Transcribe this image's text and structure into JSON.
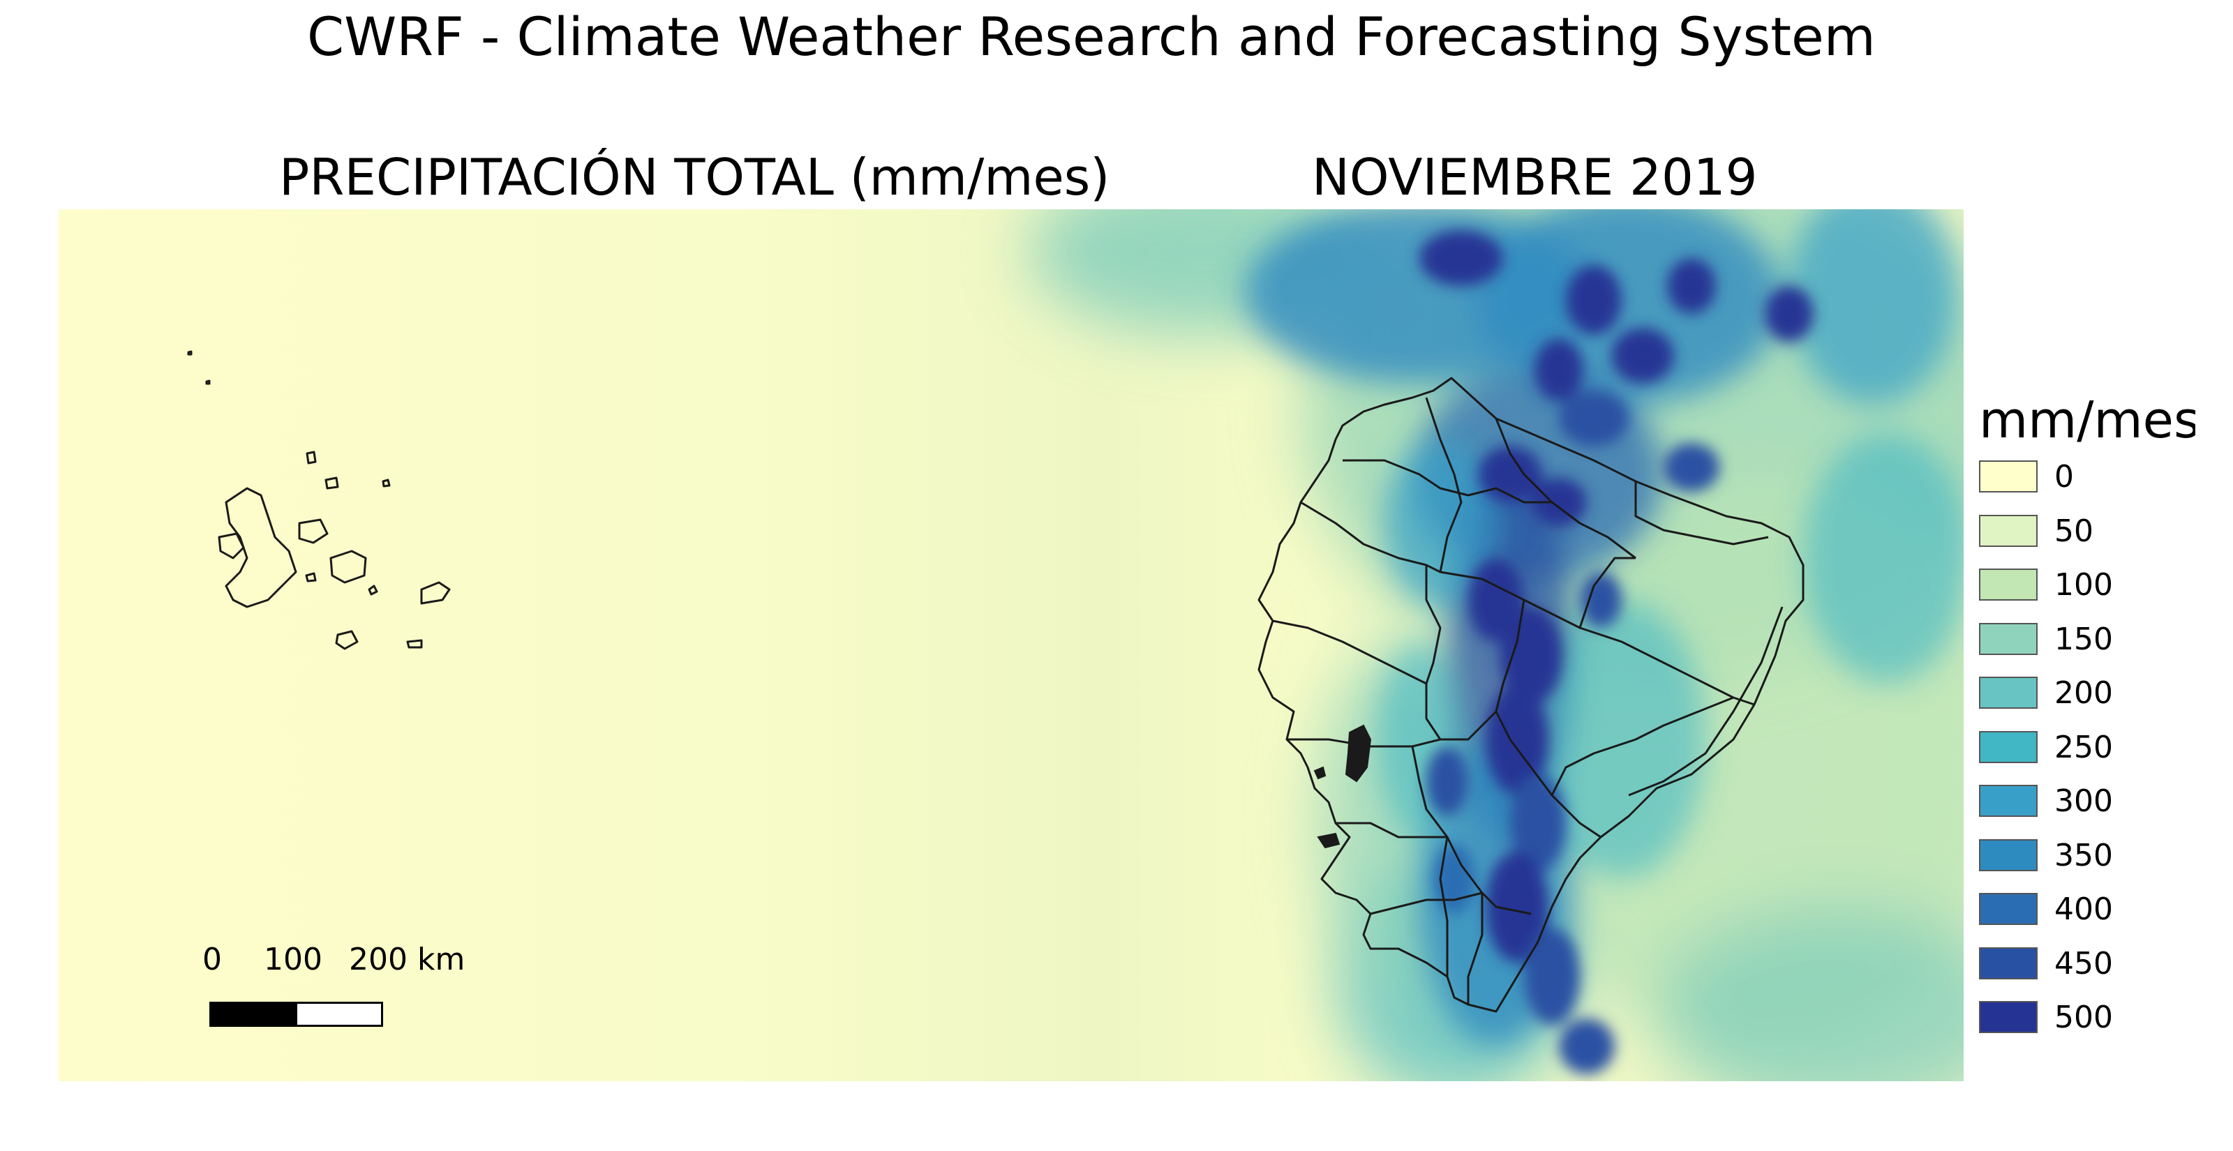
{
  "header": {
    "title": "CWRF - Climate Weather Research and Forecasting System",
    "variable": "PRECIPITACIÓN TOTAL (mm/mes)",
    "period": "NOVIEMBRE 2019"
  },
  "legend": {
    "title": "mm/mes",
    "items": [
      {
        "label": "0",
        "color": "#ffffcc"
      },
      {
        "label": "50",
        "color": "#e0f3c2"
      },
      {
        "label": "100",
        "color": "#c2e6b4"
      },
      {
        "label": "150",
        "color": "#90d3bd"
      },
      {
        "label": "200",
        "color": "#67c4c3"
      },
      {
        "label": "250",
        "color": "#41b6c4"
      },
      {
        "label": "300",
        "color": "#38a0c8"
      },
      {
        "label": "350",
        "color": "#2e8bc0"
      },
      {
        "label": "400",
        "color": "#2b6db2"
      },
      {
        "label": "450",
        "color": "#2951a3"
      },
      {
        "label": "500",
        "color": "#253494"
      }
    ]
  },
  "scalebar": {
    "labels": [
      "0",
      "100",
      "200 km"
    ]
  },
  "colors": {
    "dry": "#ffffcc",
    "wet": "#253494",
    "boundary": "#1a1a1a"
  }
}
